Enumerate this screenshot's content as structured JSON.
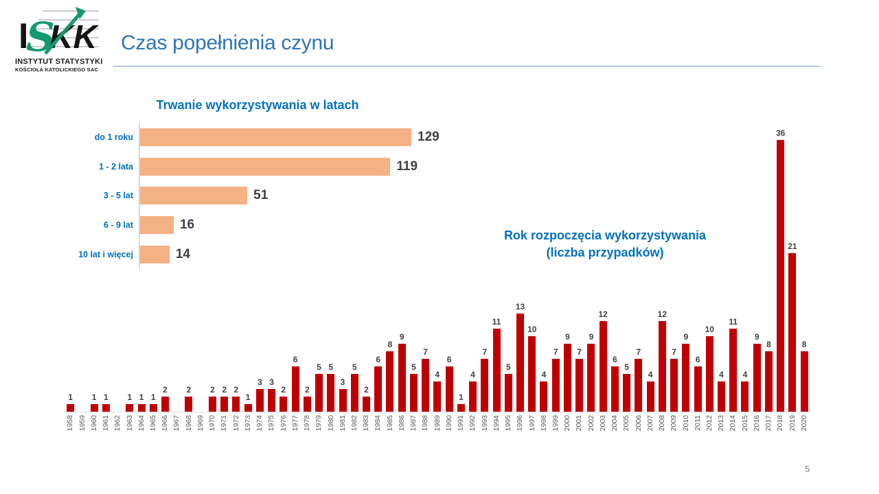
{
  "slide": {
    "title": "Czas popełnienia czynu",
    "page_number": "5"
  },
  "logo": {
    "letter_i": "I",
    "letter_s": "S",
    "letter_kk": "KK",
    "line1": "INSTYTUT STATYSTYKI",
    "line2": "KOŚCIOŁA KATOLICKIEGO SAC"
  },
  "colors": {
    "accent_blue": "#0070C0",
    "title_blue": "#2E74B5",
    "bar_orange": "#F4B183",
    "bar_red": "#C00000",
    "logo_green": "#15976F"
  },
  "chart_data": [
    {
      "id": "duration-of-abuse",
      "type": "bar",
      "orientation": "horizontal",
      "title": "Trwanie wykorzystywania w latach",
      "categories": [
        "do 1 roku",
        "1 - 2 lata",
        "3 - 5 lat",
        "6 - 9 lat",
        "10 lat i więcej"
      ],
      "values": [
        129,
        119,
        51,
        16,
        14
      ],
      "bar_color": "#F4B183",
      "category_label_color": "#0070C0",
      "value_label_color": "#404040",
      "xlim": [
        0,
        135
      ],
      "grid": false,
      "legend": false
    },
    {
      "id": "start-year-of-abuse",
      "type": "bar",
      "orientation": "vertical",
      "title": "Rok rozpoczęcia  wykorzystywania",
      "subtitle": "(liczba przypadków)",
      "categories": [
        "1958",
        "1959",
        "1960",
        "1961",
        "1962",
        "1963",
        "1964",
        "1965",
        "1966",
        "1967",
        "1968",
        "1969",
        "1970",
        "1971",
        "1972",
        "1973",
        "1974",
        "1975",
        "1976",
        "1977",
        "1978",
        "1979",
        "1980",
        "1981",
        "1982",
        "1983",
        "1984",
        "1985",
        "1986",
        "1987",
        "1988",
        "1989",
        "1990",
        "1991",
        "1992",
        "1993",
        "1994",
        "1995",
        "1996",
        "1997",
        "1998",
        "1999",
        "2000",
        "2001",
        "2002",
        "2003",
        "2004",
        "2005",
        "2006",
        "2007",
        "2008",
        "2009",
        "2010",
        "2011",
        "2012",
        "2013",
        "2014",
        "2015",
        "2016",
        "2017",
        "2018",
        "2019",
        "2020"
      ],
      "values": [
        1,
        0,
        1,
        1,
        0,
        1,
        1,
        1,
        2,
        0,
        2,
        0,
        2,
        2,
        2,
        1,
        3,
        3,
        2,
        6,
        2,
        5,
        5,
        3,
        5,
        2,
        6,
        8,
        9,
        5,
        7,
        4,
        6,
        1,
        4,
        7,
        11,
        5,
        13,
        10,
        4,
        7,
        9,
        7,
        9,
        12,
        6,
        5,
        7,
        4,
        12,
        7,
        9,
        6,
        10,
        4,
        11,
        4,
        9,
        8,
        36,
        21,
        8
      ],
      "bar_color": "#C00000",
      "value_label_color": "#404040",
      "axis_label_color": "#595959",
      "ylim": [
        0,
        36
      ],
      "grid": false,
      "legend": false
    }
  ]
}
